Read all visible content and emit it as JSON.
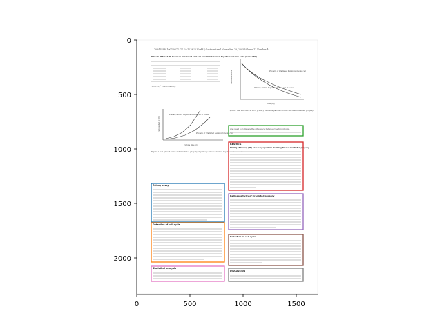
{
  "axes": {
    "x_ticks": [
      "0",
      "500",
      "1000",
      "1500"
    ],
    "y_ticks": [
      "0",
      "500",
      "1000",
      "1500",
      "2000"
    ],
    "x_range": [
      0,
      1700
    ],
    "y_range": [
      2400,
      0
    ]
  },
  "document": {
    "header": "7034    ISSN 1007-9327    CN 14-1219/ R    World J Gastroenterol    November 28, 2005   Volume 11   Number 44",
    "table4_caption": "Table 4 PDT and PE between irradiated and non-irradiated human hepatocarcinoma cells (mean±SD)",
    "table4_note": "*P<0.01, ^P<0.05 vs 0 Gy.",
    "fig1_caption": "Figure 1 Cell growth curve and irradiated progeny of primary cultured human hepatocarcinoma cells.",
    "fig2_caption": "Figure 2 Cell survival curve of primary human hepatocarcinoma cells and irradiated progeny.",
    "fig1_legend_a": "Primary culture hepatocarcinoma cell of human",
    "fig1_legend_b": "Progeny of irradiated hepatocarcinoma cell",
    "fig1_xlabel": "Culture time (d)",
    "fig1_ylabel": "Cell number (×10⁴)",
    "fig2_legend_a": "Progeny of irradiated hepatocarcinoma cell",
    "fig2_legend_b": "Primary culture hepatocarcinoma cell of human",
    "fig2_xlabel": "Dose (Gy)",
    "fig2_ylabel": "Survival fraction"
  },
  "sections": [
    {
      "heading": "Colony assay",
      "color": "#1f77b4"
    },
    {
      "heading": "Detection of cell cycle",
      "color": "#ff7f0e"
    },
    {
      "heading": "Statistical analysis",
      "color": "#e377c2"
    },
    {
      "heading": "",
      "first_line": "was used to compare the difference between the two groups.",
      "color": "#2ca02c"
    },
    {
      "heading": "RESULTS",
      "subheading": "Plating efficiency (PE) and cell population doubling time of irradiated progeny",
      "color": "#d62728"
    },
    {
      "heading": "Radiosensitivity of irradiated progeny",
      "color": "#9467bd"
    },
    {
      "heading": "Detection of cell cycle",
      "color": "#8c564b"
    },
    {
      "heading": "DISCUSSION",
      "color": "#7f7f7f"
    }
  ]
}
